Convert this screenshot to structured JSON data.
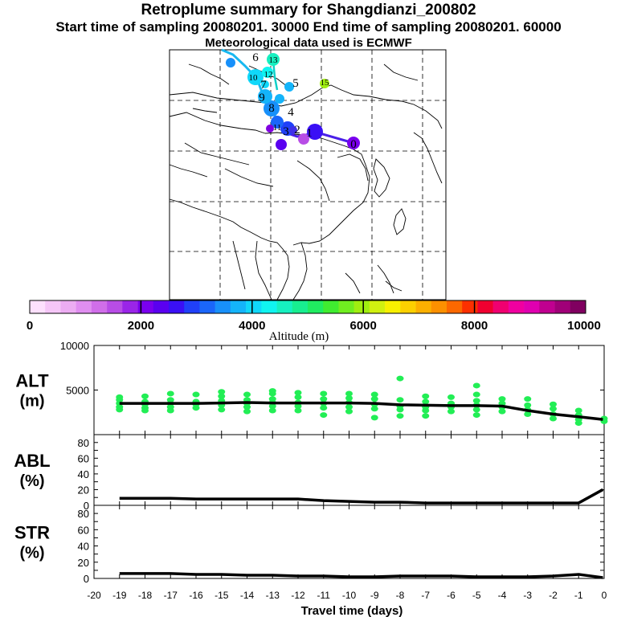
{
  "header": {
    "title": "Retroplume summary for Shangdianzi_200802",
    "subtitle": "Start time of sampling 20080201. 30000     End time of sampling 20080201. 60000",
    "met_line": "Meteorological data used is ECMWF"
  },
  "colorbar": {
    "label": "Altitude (m)",
    "tick_labels": [
      "0",
      "2000",
      "4000",
      "6000",
      "8000",
      "10000"
    ],
    "colors": [
      "#fde0fd",
      "#f5c6f7",
      "#ecacf2",
      "#e08ef0",
      "#d06ee9",
      "#b84de6",
      "#9a25e8",
      "#7a00ee",
      "#5a00f0",
      "#3a10f5",
      "#2040f8",
      "#1a66fa",
      "#1890fa",
      "#14b4fa",
      "#10d8fa",
      "#10f4f0",
      "#16f0c0",
      "#18ee90",
      "#20ec60",
      "#40ec30",
      "#70ee20",
      "#a0ee10",
      "#d0f010",
      "#f8f000",
      "#fcd000",
      "#fcb000",
      "#fc9000",
      "#fc6800",
      "#fc3000",
      "#f00030",
      "#f00070",
      "#f000a0",
      "#e000b0",
      "#c00090",
      "#a00078",
      "#800060"
    ]
  },
  "map": {
    "trajectory_labels": [
      "0",
      "1",
      "2",
      "3",
      "4",
      "5",
      "6",
      "7",
      "8",
      "9",
      "10",
      "11",
      "12",
      "13",
      "15"
    ],
    "colors": {
      "land_line": "#000000",
      "grid": "#000000"
    }
  },
  "chart_data": [
    {
      "type": "line",
      "panel": "ALT",
      "ylabel_line1": "ALT",
      "ylabel_line2": "(m)",
      "ylim": [
        0,
        10000
      ],
      "ytick_labels": [
        "10000",
        "5000"
      ],
      "x": [
        -19,
        -18,
        -17,
        -16,
        -15,
        -14,
        -13,
        -12,
        -11,
        -10,
        -9,
        -8,
        -7,
        -6,
        -5,
        -4,
        -3,
        -2,
        -1,
        -0.05
      ],
      "values": [
        3500,
        3500,
        3500,
        3500,
        3550,
        3600,
        3550,
        3550,
        3550,
        3550,
        3500,
        3350,
        3300,
        3250,
        3250,
        3200,
        2700,
        2300,
        2000,
        1700
      ],
      "scatter_color": "#22ee55",
      "scatter_points": [
        [
          -19,
          3100
        ],
        [
          -19,
          3500
        ],
        [
          -19,
          3900
        ],
        [
          -19,
          4200
        ],
        [
          -19,
          2800
        ],
        [
          -18,
          3000
        ],
        [
          -18,
          3400
        ],
        [
          -18,
          3700
        ],
        [
          -18,
          4300
        ],
        [
          -18,
          2700
        ],
        [
          -17,
          3100
        ],
        [
          -17,
          3500
        ],
        [
          -17,
          3900
        ],
        [
          -17,
          4600
        ],
        [
          -17,
          2700
        ],
        [
          -16,
          3000
        ],
        [
          -16,
          3400
        ],
        [
          -16,
          3700
        ],
        [
          -16,
          4500
        ],
        [
          -15,
          2800
        ],
        [
          -15,
          3300
        ],
        [
          -15,
          3800
        ],
        [
          -15,
          4300
        ],
        [
          -15,
          4800
        ],
        [
          -14,
          2600
        ],
        [
          -14,
          3100
        ],
        [
          -14,
          3500
        ],
        [
          -14,
          3900
        ],
        [
          -14,
          4500
        ],
        [
          -13,
          2700
        ],
        [
          -13,
          3200
        ],
        [
          -13,
          3600
        ],
        [
          -13,
          4000
        ],
        [
          -13,
          4600
        ],
        [
          -13,
          4900
        ],
        [
          -12,
          2700
        ],
        [
          -12,
          3200
        ],
        [
          -12,
          3600
        ],
        [
          -12,
          4200
        ],
        [
          -12,
          4700
        ],
        [
          -11,
          2200
        ],
        [
          -11,
          3000
        ],
        [
          -11,
          3500
        ],
        [
          -11,
          4000
        ],
        [
          -11,
          4600
        ],
        [
          -10,
          2600
        ],
        [
          -10,
          3100
        ],
        [
          -10,
          3600
        ],
        [
          -10,
          4100
        ],
        [
          -10,
          4600
        ],
        [
          -9,
          1900
        ],
        [
          -9,
          2900
        ],
        [
          -9,
          3400
        ],
        [
          -9,
          4000
        ],
        [
          -9,
          4500
        ],
        [
          -8,
          2100
        ],
        [
          -8,
          2800
        ],
        [
          -8,
          3200
        ],
        [
          -8,
          3900
        ],
        [
          -8,
          6300
        ],
        [
          -7,
          2100
        ],
        [
          -7,
          2700
        ],
        [
          -7,
          3100
        ],
        [
          -7,
          3700
        ],
        [
          -7,
          4300
        ],
        [
          -6,
          2600
        ],
        [
          -6,
          3100
        ],
        [
          -6,
          3500
        ],
        [
          -6,
          4200
        ],
        [
          -5,
          2200
        ],
        [
          -5,
          2800
        ],
        [
          -5,
          3300
        ],
        [
          -5,
          3800
        ],
        [
          -5,
          4500
        ],
        [
          -5,
          5500
        ],
        [
          -4,
          2600
        ],
        [
          -4,
          3100
        ],
        [
          -4,
          3500
        ],
        [
          -4,
          4000
        ],
        [
          -3,
          2300
        ],
        [
          -3,
          2800
        ],
        [
          -3,
          3300
        ],
        [
          -3,
          4000
        ],
        [
          -2,
          1800
        ],
        [
          -2,
          2300
        ],
        [
          -2,
          2900
        ],
        [
          -2,
          3400
        ],
        [
          -1,
          1300
        ],
        [
          -1,
          1700
        ],
        [
          -1,
          2200
        ],
        [
          -1,
          2700
        ],
        [
          0,
          1500
        ],
        [
          0,
          1800
        ]
      ]
    },
    {
      "type": "line",
      "panel": "ABL",
      "ylabel_line1": "ABL",
      "ylabel_line2": "(%)",
      "ylim": [
        0,
        90
      ],
      "ytick_labels": [
        "80",
        "60",
        "40",
        "20",
        "0"
      ],
      "x": [
        -19,
        -18,
        -17,
        -16,
        -15,
        -14,
        -13,
        -12,
        -11,
        -10,
        -9,
        -8,
        -7,
        -6,
        -5,
        -4,
        -3,
        -2,
        -1,
        -0.05
      ],
      "values": [
        9,
        9,
        9,
        8,
        8,
        8,
        8,
        8,
        6,
        5,
        4,
        4,
        3,
        3,
        3,
        3,
        3,
        3,
        3,
        20
      ]
    },
    {
      "type": "line",
      "panel": "STR",
      "ylabel_line1": "STR",
      "ylabel_line2": "(%)",
      "ylim": [
        0,
        90
      ],
      "ytick_labels": [
        "80",
        "60",
        "40",
        "20",
        "0"
      ],
      "x": [
        -19,
        -18,
        -17,
        -16,
        -15,
        -14,
        -13,
        -12,
        -11,
        -10,
        -9,
        -8,
        -7,
        -6,
        -5,
        -4,
        -3,
        -2,
        -1,
        -0.05
      ],
      "values": [
        6,
        6,
        6,
        5,
        5,
        4,
        4,
        3,
        3,
        2,
        2,
        3,
        3,
        3,
        2,
        2,
        2,
        3,
        5,
        1
      ]
    }
  ],
  "xaxis": {
    "label": "Travel time (days)",
    "tick_labels": [
      "-20",
      "-19",
      "-18",
      "-17",
      "-16",
      "-15",
      "-14",
      "-13",
      "-12",
      "-11",
      "-10",
      "-9",
      "-8",
      "-7",
      "-6",
      "-5",
      "-4",
      "-3",
      "-2",
      "-1",
      "0"
    ],
    "xlim": [
      -20,
      0
    ]
  }
}
